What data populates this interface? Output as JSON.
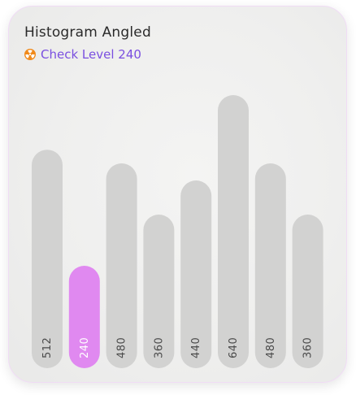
{
  "card": {
    "title": "Histogram Angled",
    "subtitle": "Check Level 240",
    "subtitle_icon": "radiation-icon"
  },
  "colors": {
    "bar": "#d2d2d1",
    "highlight": "#e089f0",
    "label": "#4a4a4a",
    "highlight_label": "#ffffff",
    "subtitle": "#7a4fe0",
    "icon": "#f08a1c"
  },
  "chart_data": {
    "type": "bar",
    "values": [
      512,
      240,
      480,
      360,
      440,
      640,
      480,
      360
    ],
    "labels": [
      "512",
      "240",
      "480",
      "360",
      "440",
      "640",
      "480",
      "360"
    ],
    "highlight_value": 240,
    "highlight_index": 1,
    "ylim": [
      0,
      640
    ],
    "label_orientation": "vertical"
  }
}
